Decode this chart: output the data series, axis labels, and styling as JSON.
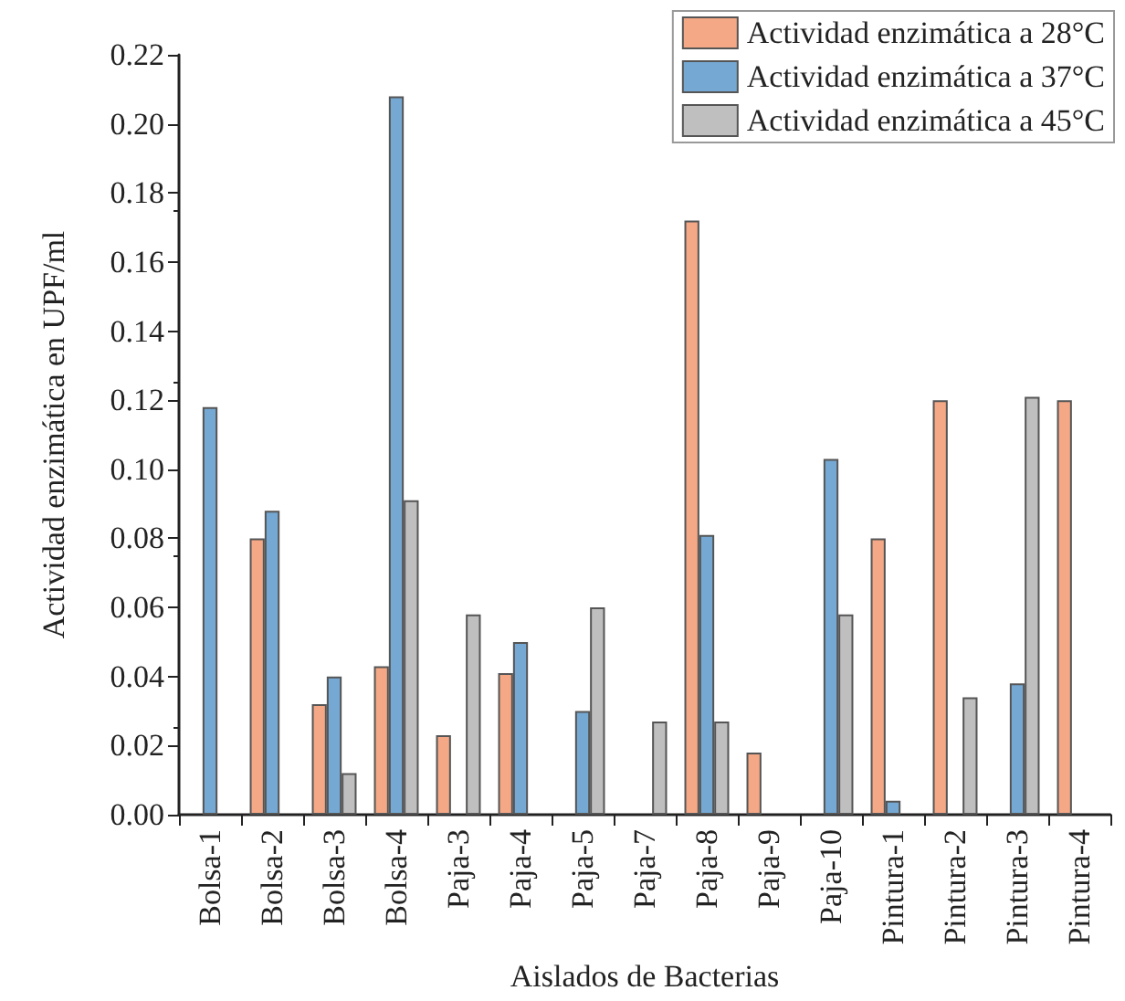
{
  "chart_data": {
    "type": "bar",
    "xlabel": "Aislados de Bacterias",
    "ylabel": "Actividad enzimática en UPF/ml",
    "categories": [
      "Bolsa-1",
      "Bolsa-2",
      "Bolsa-3",
      "Bolsa-4",
      "Paja-3",
      "Paja-4",
      "Paja-5",
      "Paja-7",
      "Paja-8",
      "Paja-9",
      "Paja-10",
      "Pintura-1",
      "Pintura-2",
      "Pintura-3",
      "Pintura-4"
    ],
    "series": [
      {
        "name": "Actividad enzimática a 28°C",
        "color": "#f4a886",
        "values": [
          null,
          0.08,
          0.032,
          0.043,
          0.023,
          0.041,
          null,
          null,
          0.172,
          0.018,
          null,
          0.08,
          0.12,
          null,
          0.12
        ]
      },
      {
        "name": "Actividad enzimática a 37°C",
        "color": "#75a8d2",
        "values": [
          0.118,
          0.088,
          0.04,
          0.208,
          null,
          0.05,
          0.03,
          null,
          0.081,
          null,
          0.103,
          0.004,
          null,
          0.038,
          null
        ]
      },
      {
        "name": "Actividad enzimática a 45°C",
        "color": "#bfbfbf",
        "values": [
          null,
          null,
          0.012,
          0.091,
          0.058,
          null,
          0.06,
          0.027,
          0.027,
          null,
          0.058,
          null,
          0.034,
          0.121,
          null
        ]
      }
    ],
    "ylim": [
      0,
      0.22
    ],
    "yticks": [
      {
        "value": 0,
        "label": "0.00"
      },
      {
        "value": 0.02,
        "label": "0.02"
      },
      {
        "value": 0.04,
        "label": "0.04"
      },
      {
        "value": 0.06,
        "label": "0.06"
      },
      {
        "value": 0.08,
        "label": "0.08"
      },
      {
        "value": 0.1,
        "label": "0.10"
      },
      {
        "value": 0.12,
        "label": "0.12"
      },
      {
        "value": 0.14,
        "label": "0.14"
      },
      {
        "value": 0.16,
        "label": "0.16"
      },
      {
        "value": 0.18,
        "label": "0.18"
      },
      {
        "value": 0.2,
        "label": "0.20"
      },
      {
        "value": 0.22,
        "label": "0.22"
      }
    ],
    "legend": "top right",
    "grid": false
  }
}
